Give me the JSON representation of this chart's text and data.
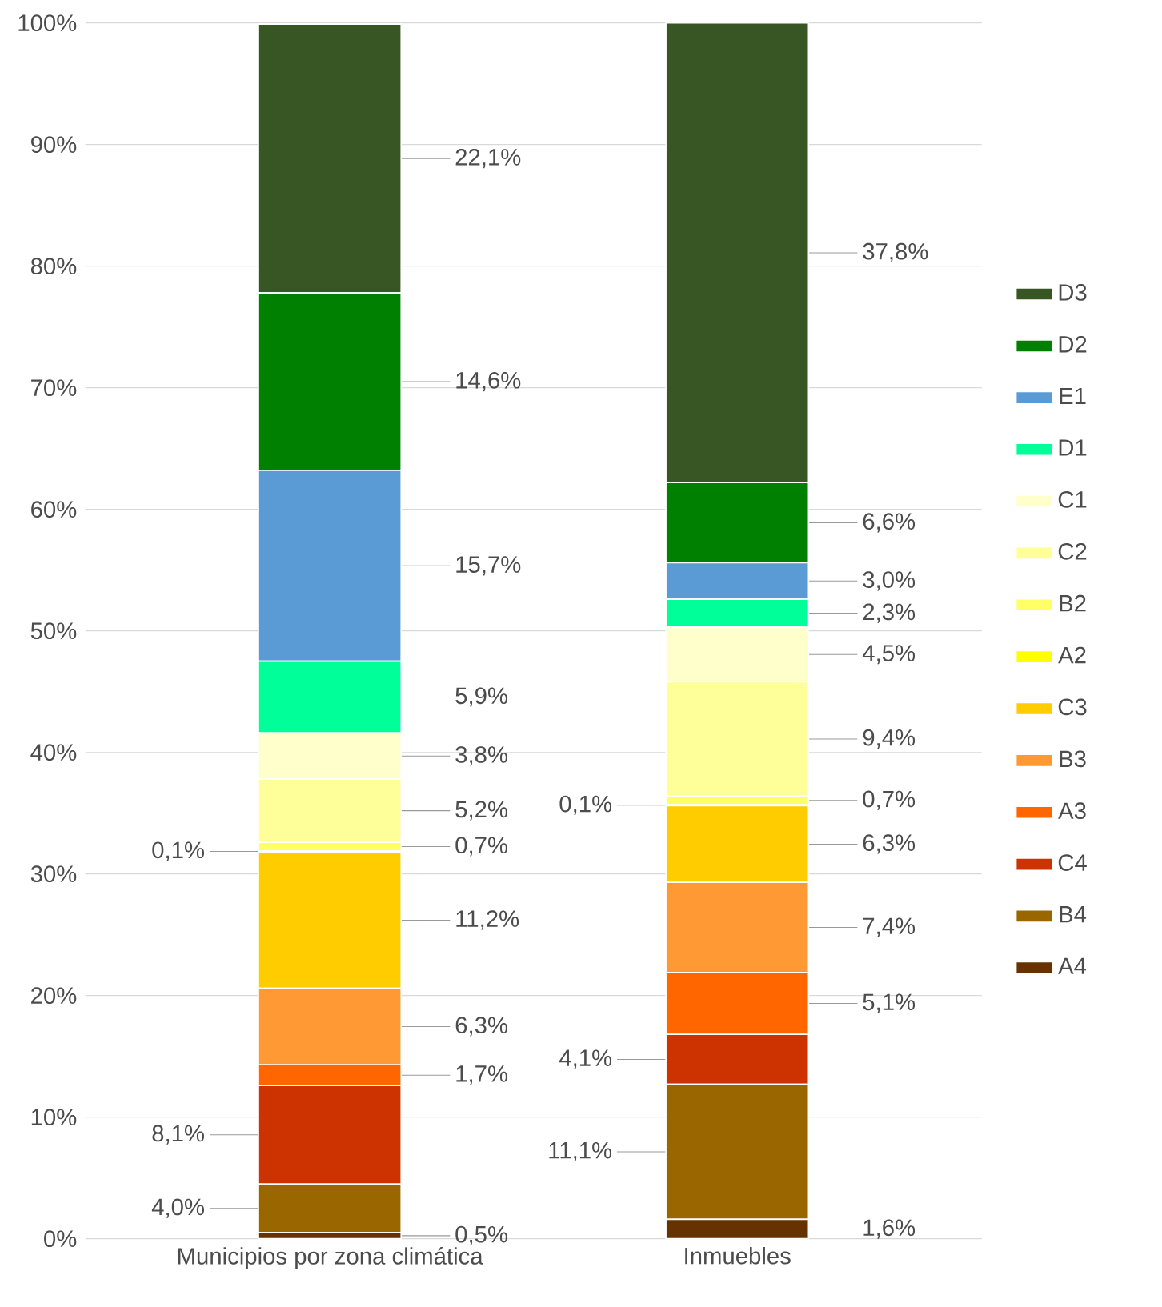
{
  "chart_data": {
    "type": "bar",
    "stacked": true,
    "categories": [
      "Municipios por zona climática",
      "Inmuebles"
    ],
    "ylim": [
      0,
      100
    ],
    "yticks": [
      {
        "value": 0,
        "label": "0%"
      },
      {
        "value": 10,
        "label": "10%"
      },
      {
        "value": 20,
        "label": "20%"
      },
      {
        "value": 30,
        "label": "30%"
      },
      {
        "value": 40,
        "label": "40%"
      },
      {
        "value": 50,
        "label": "50%"
      },
      {
        "value": 60,
        "label": "60%"
      },
      {
        "value": 70,
        "label": "70%"
      },
      {
        "value": 80,
        "label": "80%"
      },
      {
        "value": 90,
        "label": "90%"
      },
      {
        "value": 100,
        "label": "100%"
      }
    ],
    "grid": "y",
    "legend": "right",
    "series": [
      {
        "name": "A4",
        "color": "#663300",
        "values": [
          0.5,
          1.6
        ],
        "value_labels": [
          "0,5%",
          "1,6%"
        ]
      },
      {
        "name": "B4",
        "color": "#996600",
        "values": [
          4.0,
          11.1
        ],
        "value_labels": [
          "4,0%",
          "11,1%"
        ]
      },
      {
        "name": "C4",
        "color": "#cc3300",
        "values": [
          8.1,
          4.1
        ],
        "value_labels": [
          "8,1%",
          "4,1%"
        ]
      },
      {
        "name": "A3",
        "color": "#ff6600",
        "values": [
          1.7,
          5.1
        ],
        "value_labels": [
          "1,7%",
          "5,1%"
        ]
      },
      {
        "name": "B3",
        "color": "#ff9933",
        "values": [
          6.3,
          7.4
        ],
        "value_labels": [
          "6,3%",
          "7,4%"
        ]
      },
      {
        "name": "C3",
        "color": "#ffcc00",
        "values": [
          11.2,
          6.3
        ],
        "value_labels": [
          "11,2%",
          "6,3%"
        ]
      },
      {
        "name": "A2",
        "color": "#ffff00",
        "values": [
          0.1,
          0.1
        ],
        "value_labels": [
          "0,1%",
          "0,1%"
        ]
      },
      {
        "name": "B2",
        "color": "#ffff66",
        "values": [
          0.7,
          0.7
        ],
        "value_labels": [
          "0,7%",
          "0,7%"
        ]
      },
      {
        "name": "C2",
        "color": "#ffff99",
        "values": [
          5.2,
          9.4
        ],
        "value_labels": [
          "5,2%",
          "9,4%"
        ]
      },
      {
        "name": "C1",
        "color": "#ffffcc",
        "values": [
          3.8,
          4.5
        ],
        "value_labels": [
          "3,8%",
          "4,5%"
        ]
      },
      {
        "name": "D1",
        "color": "#00ff99",
        "values": [
          5.9,
          2.3
        ],
        "value_labels": [
          "5,9%",
          "2,3%"
        ]
      },
      {
        "name": "E1",
        "color": "#5b9bd5",
        "values": [
          15.7,
          3.0
        ],
        "value_labels": [
          "15,7%",
          "3,0%"
        ]
      },
      {
        "name": "D2",
        "color": "#008000",
        "values": [
          14.6,
          6.6
        ],
        "value_labels": [
          "14,6%",
          "6,6%"
        ]
      },
      {
        "name": "D3",
        "color": "#375623",
        "values": [
          22.1,
          37.8
        ],
        "value_labels": [
          "22,1%",
          "37,8%"
        ]
      }
    ]
  }
}
